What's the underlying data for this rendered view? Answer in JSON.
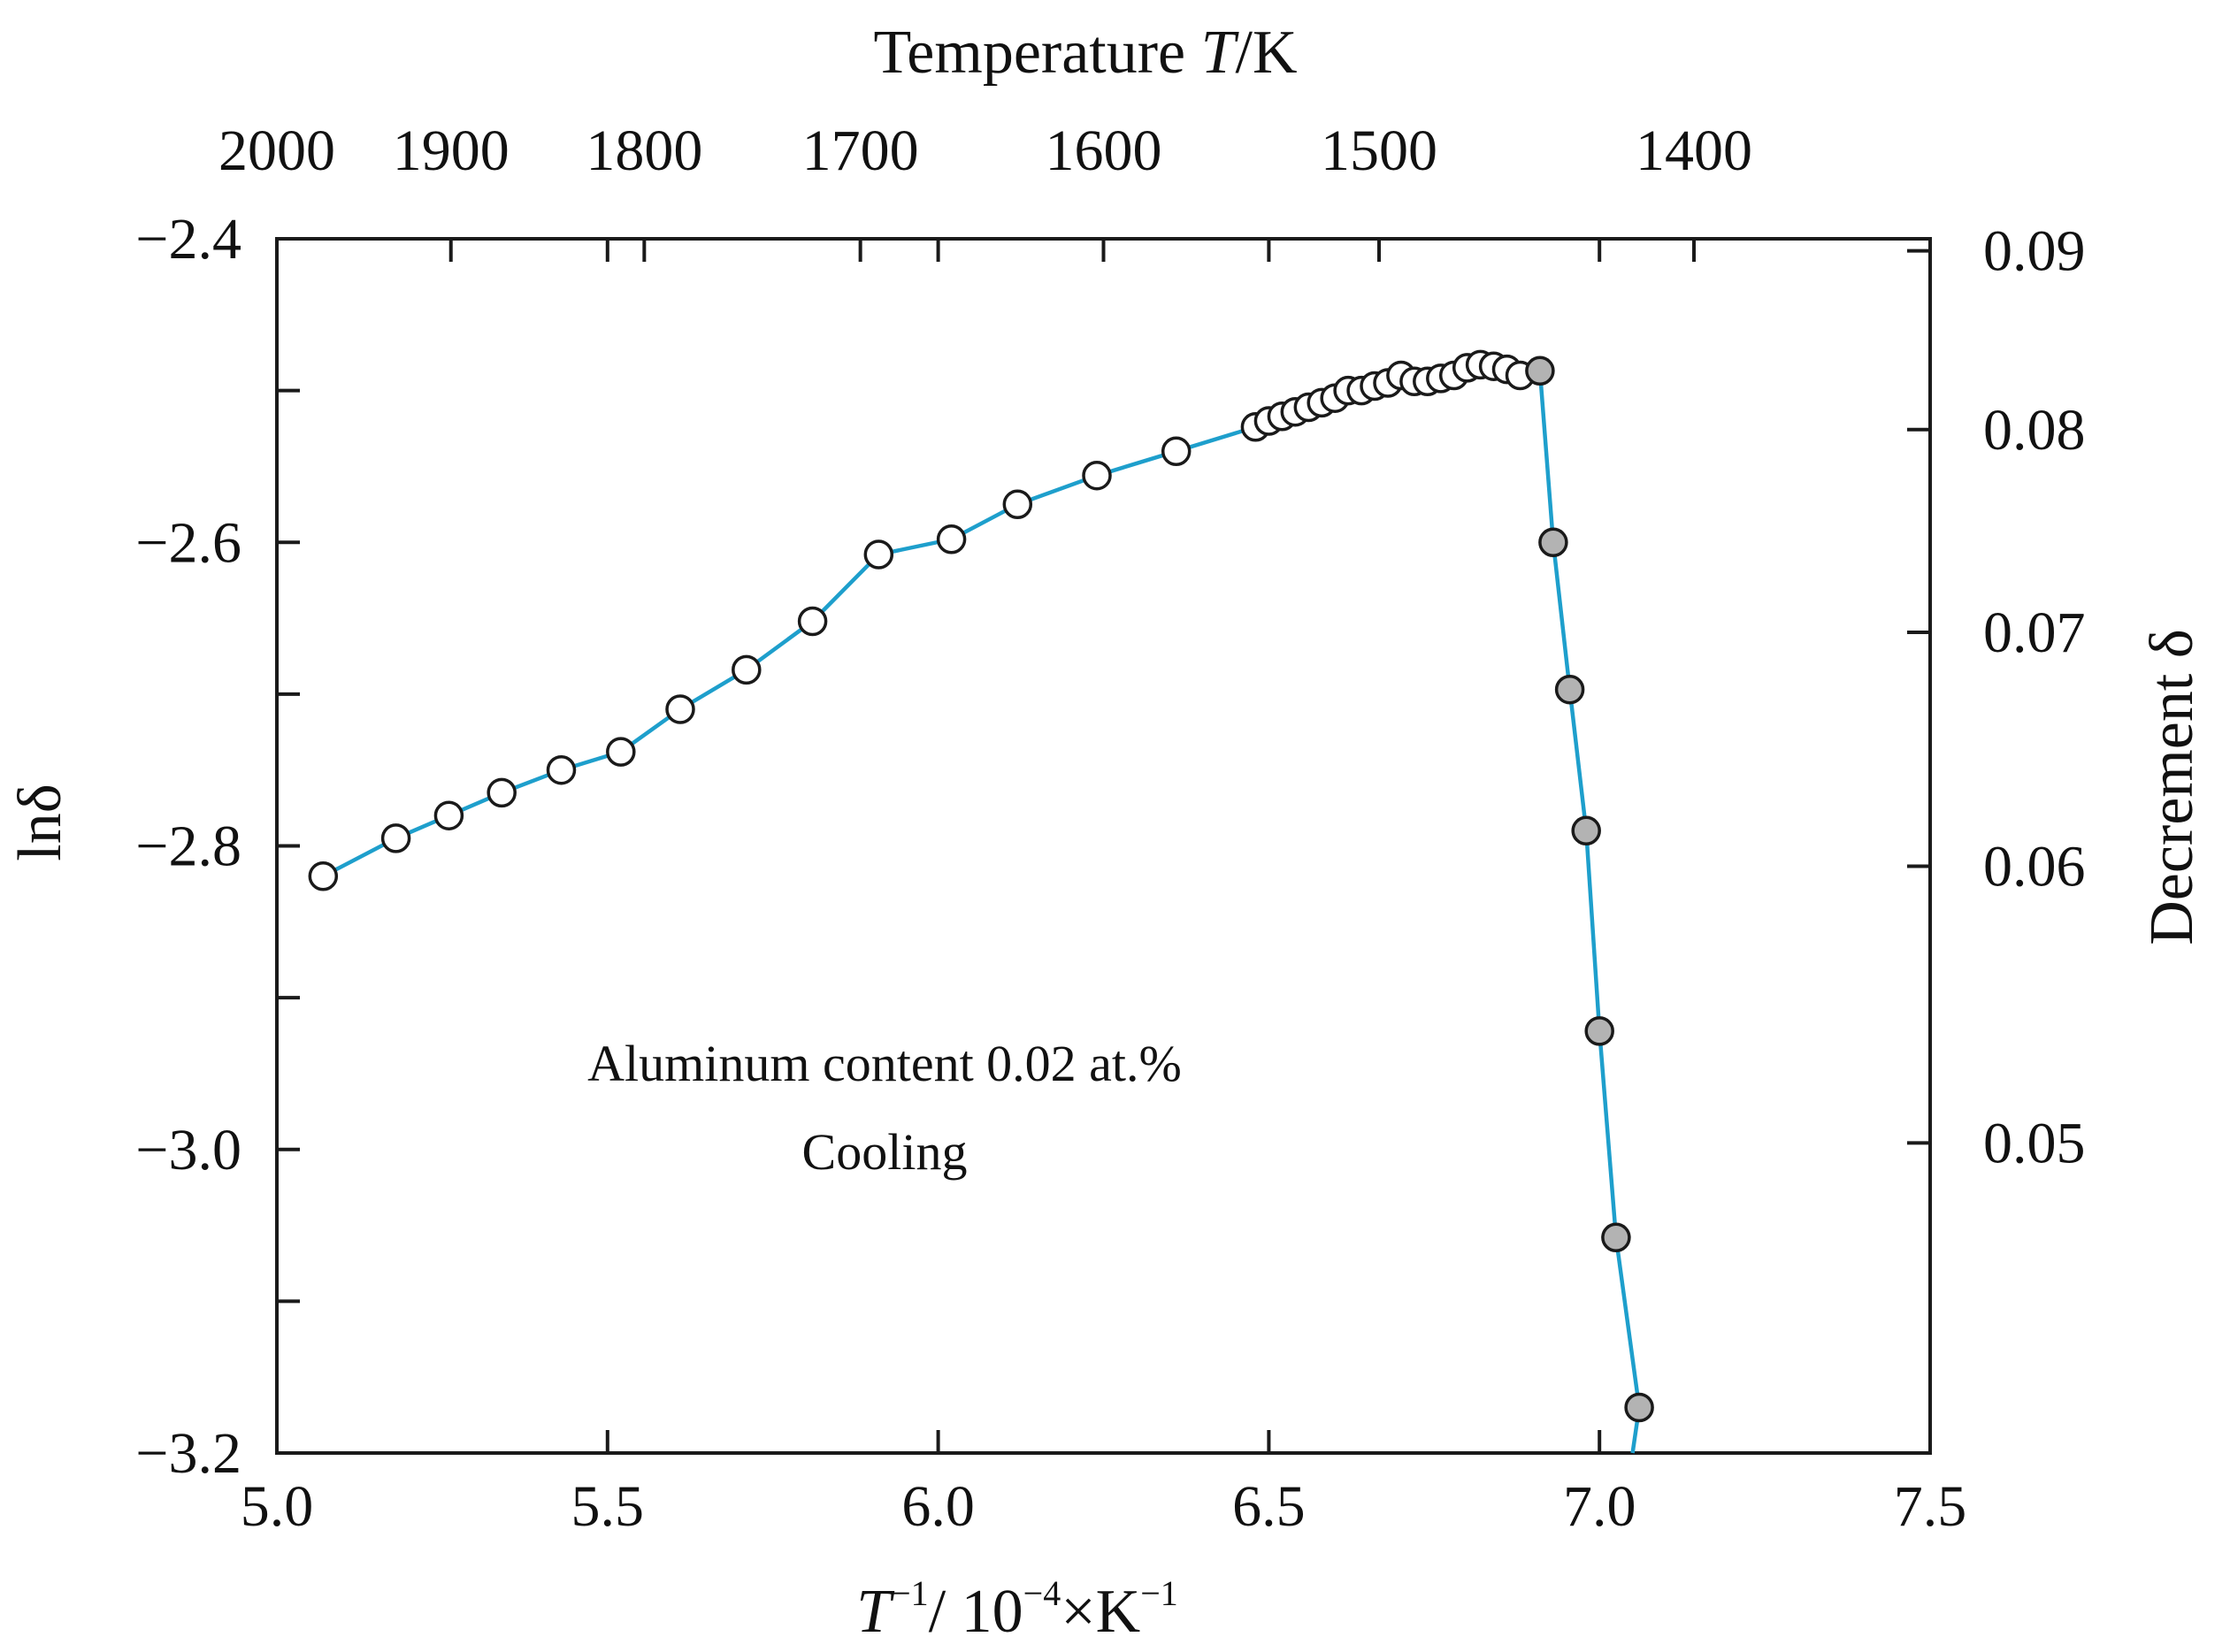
{
  "chart_data": {
    "type": "line",
    "title": "",
    "top_axis": {
      "label_main": "Temperature ",
      "label_var": "T",
      "label_unit": "/K",
      "ticks": [
        2000,
        1900,
        1800,
        1700,
        1600,
        1500,
        1400
      ]
    },
    "x_axis": {
      "label_var": "T",
      "label_sup1": "−1",
      "label_mid": "/ 10",
      "label_sup2": "−4",
      "label_unit": "×K",
      "label_sup3": "−1",
      "xlim": [
        5.0,
        7.5
      ],
      "ticks": [
        5.0,
        5.5,
        6.0,
        6.5,
        7.0,
        7.5
      ],
      "tick_labels": [
        "5.0",
        "5.5",
        "6.0",
        "6.5",
        "7.0",
        "7.5"
      ]
    },
    "y_axis": {
      "label": "lnδ",
      "ylim": [
        -3.2,
        -2.4
      ],
      "ticks": [
        -3.2,
        -3.0,
        -2.8,
        -2.6,
        -2.4
      ],
      "tick_labels": [
        "−3.2",
        "−3.0",
        "−2.8",
        "−2.6",
        "−2.4"
      ],
      "minor_ticks": [
        -3.1,
        -2.9,
        -2.7,
        -2.5
      ]
    },
    "right_axis": {
      "label": "Decrement δ",
      "ticks": [
        0.09,
        0.08,
        0.07,
        0.06,
        0.05
      ],
      "tick_labels": [
        "0.09",
        "0.08",
        "0.07",
        "0.06",
        "0.05"
      ]
    },
    "annotations": [
      "Aluminum content 0.02 at.%",
      "Cooling"
    ],
    "line_color": "#1e9fcc",
    "series": [
      {
        "marker": "open-circle",
        "marker_fill": "#ffffff",
        "points": [
          [
            5.07,
            -2.82
          ],
          [
            5.18,
            -2.795
          ],
          [
            5.26,
            -2.78
          ],
          [
            5.34,
            -2.765
          ],
          [
            5.43,
            -2.75
          ],
          [
            5.52,
            -2.738
          ],
          [
            5.61,
            -2.71
          ],
          [
            5.71,
            -2.684
          ],
          [
            5.81,
            -2.652
          ],
          [
            5.91,
            -2.608
          ],
          [
            6.02,
            -2.598
          ],
          [
            6.12,
            -2.575
          ],
          [
            6.24,
            -2.556
          ],
          [
            6.36,
            -2.54
          ],
          [
            6.48,
            -2.524
          ],
          [
            6.5,
            -2.52
          ],
          [
            6.52,
            -2.517
          ],
          [
            6.54,
            -2.514
          ],
          [
            6.56,
            -2.511
          ],
          [
            6.58,
            -2.508
          ],
          [
            6.6,
            -2.505
          ],
          [
            6.62,
            -2.5
          ],
          [
            6.64,
            -2.5
          ],
          [
            6.66,
            -2.497
          ],
          [
            6.68,
            -2.495
          ],
          [
            6.7,
            -2.49
          ],
          [
            6.72,
            -2.494
          ],
          [
            6.74,
            -2.494
          ],
          [
            6.76,
            -2.492
          ],
          [
            6.78,
            -2.49
          ],
          [
            6.8,
            -2.485
          ],
          [
            6.82,
            -2.483
          ],
          [
            6.84,
            -2.484
          ],
          [
            6.86,
            -2.486
          ],
          [
            6.88,
            -2.49
          ]
        ]
      },
      {
        "marker": "filled-circle",
        "marker_fill": "#b3b3b3",
        "points": [
          [
            6.91,
            -2.487
          ],
          [
            6.93,
            -2.6
          ],
          [
            6.955,
            -2.697
          ],
          [
            6.98,
            -2.79
          ],
          [
            7.0,
            -2.922
          ],
          [
            7.025,
            -3.058
          ],
          [
            7.06,
            -3.17
          ]
        ]
      }
    ],
    "line_end": [
      7.05,
      -3.2
    ]
  }
}
